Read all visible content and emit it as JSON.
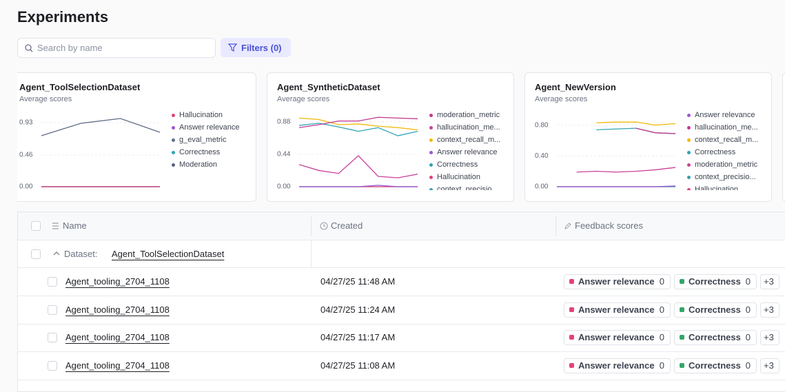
{
  "header": {
    "title": "Experiments"
  },
  "search": {
    "placeholder": "Search by name"
  },
  "filters": {
    "label": "Filters (0)"
  },
  "chart_data": [
    {
      "type": "line",
      "title": "Agent_ToolSelectionDataset",
      "subtitle": "Average scores",
      "categories": [
        null,
        null,
        null,
        null
      ],
      "ylim": [
        0,
        1.05
      ],
      "yticks": [
        {
          "value": 0,
          "label": "0.00"
        },
        {
          "value": 0.46,
          "label": "0.46"
        },
        {
          "value": 0.93,
          "label": "0.93"
        }
      ],
      "grid": true,
      "series": [
        {
          "name": "Hallucination",
          "color": "#e0427a",
          "values": [
            0,
            0,
            0,
            0
          ]
        },
        {
          "name": "Answer relevance",
          "color": "#9b59d0",
          "values": [
            0,
            0,
            0,
            0
          ]
        },
        {
          "name": "g_eval_metric",
          "color": "#5f6c86",
          "values": [
            0.74,
            0.92,
            0.99,
            0.79
          ]
        },
        {
          "name": "Correctness",
          "color": "#2fa4b5",
          "values": [
            0,
            0,
            0,
            0
          ]
        },
        {
          "name": "Moderation",
          "color": "#56627e",
          "values": [
            0,
            0,
            0,
            0
          ]
        }
      ]
    },
    {
      "type": "line",
      "title": "Agent_SyntheticDataset",
      "subtitle": "Average scores",
      "categories": [
        null,
        null,
        null,
        null,
        null,
        null,
        null
      ],
      "ylim": [
        0,
        0.98
      ],
      "yticks": [
        {
          "value": 0,
          "label": "0.00"
        },
        0.44,
        0.88
      ],
      "grid": true,
      "series": [
        {
          "name": "moderation_metric",
          "color": "#c0398f",
          "values": [
            0.8,
            0.84,
            0.89,
            0.89,
            0.94,
            0.93,
            0.92
          ]
        },
        {
          "name": "hallucination_me...",
          "color": "#c9409a",
          "values": [
            0.3,
            0.22,
            0.18,
            0.42,
            0.14,
            0.12,
            0.17
          ]
        },
        {
          "name": "context_recall_m...",
          "color": "#f2b705",
          "values": [
            0.93,
            0.91,
            0.84,
            0.85,
            0.82,
            0.8,
            0.77
          ]
        },
        {
          "name": "Answer relevance",
          "color": "#9b59d0",
          "values": [
            0,
            0,
            0,
            0,
            0.02,
            0,
            0
          ]
        },
        {
          "name": "Correctness",
          "color": "#2fa4b5",
          "values": [
            0.83,
            0.86,
            0.81,
            0.75,
            0.8,
            0.69,
            0.75
          ]
        },
        {
          "name": "Hallucination",
          "color": "#e0427a",
          "values": [
            0,
            0,
            0,
            0,
            0,
            0,
            0
          ]
        },
        {
          "name": "context_precisio",
          "color": "#3a9fae",
          "values": [
            0,
            0,
            0,
            0,
            0,
            0,
            0
          ]
        }
      ]
    },
    {
      "type": "line",
      "title": "Agent_NewVersion",
      "subtitle": "Average scores",
      "categories": [
        null,
        null,
        null,
        null,
        null,
        null,
        null
      ],
      "ylim": [
        0,
        0.94
      ],
      "yticks": [
        {
          "value": 0,
          "label": "0.00"
        },
        {
          "value": 0.4,
          "label": "0.40"
        },
        {
          "value": 0.8,
          "label": "0.80"
        }
      ],
      "grid": true,
      "series": [
        {
          "name": "Answer relevance",
          "color": "#9b59d0",
          "values": [
            0,
            0,
            0,
            0,
            0,
            0,
            0.01
          ]
        },
        {
          "name": "hallucination_me...",
          "color": "#c0398f",
          "values": [
            null,
            null,
            null,
            null,
            0.76,
            0.7,
            0.69
          ]
        },
        {
          "name": "context_recall_m...",
          "color": "#f2b705",
          "values": [
            null,
            null,
            0.83,
            0.84,
            0.84,
            0.8,
            0.82
          ]
        },
        {
          "name": "Correctness",
          "color": "#2fa4b5",
          "values": [
            null,
            null,
            0.74,
            0.75,
            0.76,
            0.7,
            0.69
          ]
        },
        {
          "name": "moderation_metric",
          "color": "#c9409a",
          "values": [
            null,
            0.19,
            0.2,
            0.19,
            0.2,
            0.22,
            0.25
          ]
        },
        {
          "name": "context_precisio...",
          "color": "#3a9fae",
          "values": [
            0,
            0,
            0,
            0,
            0,
            0,
            0
          ]
        },
        {
          "name": "Hallucination",
          "color": "#e0427a",
          "values": [
            0,
            0,
            0,
            0,
            0,
            0,
            0
          ]
        }
      ]
    }
  ],
  "table": {
    "columns": [
      "Name",
      "Created",
      "Feedback scores"
    ],
    "group": {
      "label": "Dataset:",
      "value": "Agent_ToolSelectionDataset"
    },
    "rows": [
      {
        "name": "Agent_tooling_2704_1108",
        "created": "04/27/25 11:48 AM",
        "scores": [
          {
            "name": "Answer relevance",
            "value": 0,
            "color": "#e5427a"
          },
          {
            "name": "Correctness",
            "value": 0,
            "color": "#35a56b"
          }
        ],
        "more": "+3"
      },
      {
        "name": "Agent_tooling_2704_1108",
        "created": "04/27/25 11:24 AM",
        "scores": [
          {
            "name": "Answer relevance",
            "value": 0,
            "color": "#e5427a"
          },
          {
            "name": "Correctness",
            "value": 0,
            "color": "#35a56b"
          }
        ],
        "more": "+3"
      },
      {
        "name": "Agent_tooling_2704_1108",
        "created": "04/27/25 11:17 AM",
        "scores": [
          {
            "name": "Answer relevance",
            "value": 0,
            "color": "#e5427a"
          },
          {
            "name": "Correctness",
            "value": 0,
            "color": "#35a56b"
          }
        ],
        "more": "+3"
      },
      {
        "name": "Agent_tooling_2704_1108",
        "created": "04/27/25 11:08 AM",
        "scores": [
          {
            "name": "Answer relevance",
            "value": 0,
            "color": "#e5427a"
          },
          {
            "name": "Correctness",
            "value": 0,
            "color": "#35a56b"
          }
        ],
        "more": "+3"
      }
    ]
  }
}
